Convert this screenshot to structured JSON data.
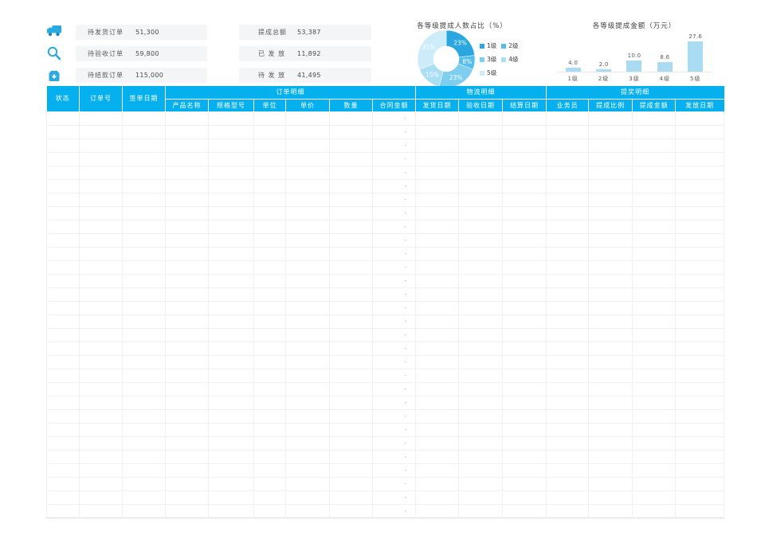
{
  "colors": {
    "accent": "#06b0ef",
    "icon_blue": "#2ba9e1",
    "stat_bg": "#f4f5f7",
    "bar_fill": "#a9dcf2"
  },
  "icons": [
    {
      "name": "truck-icon"
    },
    {
      "name": "magnifier-icon"
    },
    {
      "name": "payment-box-icon"
    }
  ],
  "stats_left": {
    "items": [
      {
        "label": "待发货订单",
        "value": "51,300"
      },
      {
        "label": "待验收订单",
        "value": "59,800"
      },
      {
        "label": "待结款订单",
        "value": "115,000"
      }
    ]
  },
  "stats_mid": {
    "items": [
      {
        "label": "提成总额",
        "value": "53,387"
      },
      {
        "label": "已 发 放",
        "value": "11,892"
      },
      {
        "label": "待 发 放",
        "value": "41,495"
      }
    ]
  },
  "chart_data": [
    {
      "type": "pie",
      "donut": true,
      "title": "各等级提成人数占比（%）",
      "labels": [
        "1级",
        "2级",
        "3级",
        "4级",
        "5级"
      ],
      "values": [
        23,
        8,
        23,
        15,
        31
      ],
      "slice_labels": [
        "23%",
        "8%",
        "23%",
        "15%",
        "31%"
      ],
      "colors": [
        "#2aa7e0",
        "#55beea",
        "#7dceef",
        "#a9def5",
        "#cdebf9"
      ],
      "legend_position": "right",
      "legend_rows": [
        [
          "1级",
          "2级"
        ],
        [
          "3级",
          "4级"
        ],
        [
          "5级"
        ]
      ]
    },
    {
      "type": "bar",
      "title": "各等级提成金额（万元）",
      "categories": [
        "1级",
        "2级",
        "3级",
        "4级",
        "5级"
      ],
      "values": [
        4.0,
        2.0,
        10.0,
        8.6,
        27.6
      ],
      "value_labels": [
        "4.0",
        "2.0",
        "10.0",
        "8.6",
        "27.6"
      ],
      "xlabel": "",
      "ylabel": "",
      "ylim": [
        0,
        30
      ],
      "grid": false,
      "bar_color": "#a9dcf2"
    }
  ],
  "table": {
    "fixed_columns": [
      {
        "label": "状态"
      },
      {
        "label": "订单号"
      },
      {
        "label": "签单日期"
      }
    ],
    "groups": [
      {
        "label": "订单明细",
        "columns": [
          "产品名称",
          "规格型号",
          "单位",
          "单价",
          "数量",
          "合同金额"
        ]
      },
      {
        "label": "物流明细",
        "columns": [
          "发货日期",
          "验收日期",
          "结算日期"
        ]
      },
      {
        "label": "提奖明细",
        "columns": [
          "业务员",
          "提成比例",
          "提成金额",
          "发放日期"
        ]
      }
    ],
    "row_count": 30,
    "empty_cell_placeholder": "-",
    "placeholder_column": "合同金额"
  }
}
